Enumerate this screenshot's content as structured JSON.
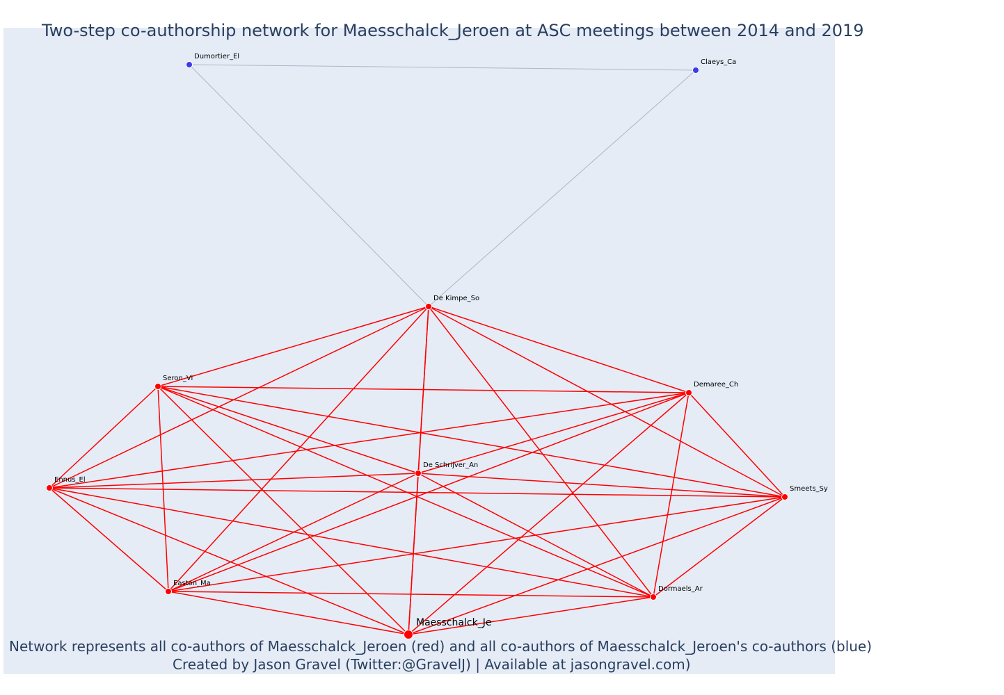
{
  "title": "Two-step co-authorship network for Maesschalck_Jeroen at ASC meetings between 2014 and 2019",
  "caption_line1": "Network represents all co-authors of Maesschalck_Jeroen (red) and all co-authors of Maesschalck_Jeroen's co-authors (blue)",
  "caption_line2": "Created by Jason Gravel (Twitter:@GravelJ) | Available at jasongravel.com)",
  "colors": {
    "first_step": "#ff0000",
    "second_step": "#3b3bea",
    "second_edge": "#b0b4c8",
    "background": "#e5ecf6",
    "title": "#2a3f5f"
  },
  "nodes": [
    {
      "id": "Dumortier_El",
      "label": "Dumortier_El",
      "group": "co-author-of-co-author"
    },
    {
      "id": "Claeys_Ca",
      "label": "Claeys_Ca",
      "group": "co-author-of-co-author"
    },
    {
      "id": "De Kimpe_So",
      "label": "De Kimpe_So",
      "group": "co-author"
    },
    {
      "id": "Seron_Vi",
      "label": "Seron_Vi",
      "group": "co-author"
    },
    {
      "id": "Demaree_Ch",
      "label": "Demaree_Ch",
      "group": "co-author"
    },
    {
      "id": "De Schrijver_An",
      "label": "De Schrijver_An",
      "group": "co-author"
    },
    {
      "id": "Ennus_El",
      "label": "Ennus_El",
      "group": "co-author"
    },
    {
      "id": "Smeets_Sy",
      "label": "Smeets_Sy",
      "group": "co-author"
    },
    {
      "id": "Easton_Ma",
      "label": "Easton_Ma",
      "group": "co-author"
    },
    {
      "id": "Dormaels_Ar",
      "label": "Dormaels_Ar",
      "group": "co-author"
    },
    {
      "id": "Maesschalck_Je",
      "label": "Maesschalck_Je",
      "group": "focal"
    }
  ],
  "edges_second_step": [
    [
      "Dumortier_El",
      "Claeys_Ca"
    ],
    [
      "Dumortier_El",
      "De Kimpe_So"
    ],
    [
      "Claeys_Ca",
      "De Kimpe_So"
    ]
  ],
  "edges_first_step": [
    [
      "De Kimpe_So",
      "Seron_Vi"
    ],
    [
      "De Kimpe_So",
      "Demaree_Ch"
    ],
    [
      "De Kimpe_So",
      "De Schrijver_An"
    ],
    [
      "De Kimpe_So",
      "Ennus_El"
    ],
    [
      "De Kimpe_So",
      "Smeets_Sy"
    ],
    [
      "De Kimpe_So",
      "Easton_Ma"
    ],
    [
      "De Kimpe_So",
      "Dormaels_Ar"
    ],
    [
      "De Kimpe_So",
      "Maesschalck_Je"
    ],
    [
      "Seron_Vi",
      "Demaree_Ch"
    ],
    [
      "Seron_Vi",
      "De Schrijver_An"
    ],
    [
      "Seron_Vi",
      "Ennus_El"
    ],
    [
      "Seron_Vi",
      "Smeets_Sy"
    ],
    [
      "Seron_Vi",
      "Easton_Ma"
    ],
    [
      "Seron_Vi",
      "Dormaels_Ar"
    ],
    [
      "Seron_Vi",
      "Maesschalck_Je"
    ],
    [
      "Demaree_Ch",
      "De Schrijver_An"
    ],
    [
      "Demaree_Ch",
      "Ennus_El"
    ],
    [
      "Demaree_Ch",
      "Smeets_Sy"
    ],
    [
      "Demaree_Ch",
      "Easton_Ma"
    ],
    [
      "Demaree_Ch",
      "Dormaels_Ar"
    ],
    [
      "Demaree_Ch",
      "Maesschalck_Je"
    ],
    [
      "De Schrijver_An",
      "Ennus_El"
    ],
    [
      "De Schrijver_An",
      "Smeets_Sy"
    ],
    [
      "De Schrijver_An",
      "Easton_Ma"
    ],
    [
      "De Schrijver_An",
      "Dormaels_Ar"
    ],
    [
      "De Schrijver_An",
      "Maesschalck_Je"
    ],
    [
      "Ennus_El",
      "Smeets_Sy"
    ],
    [
      "Ennus_El",
      "Easton_Ma"
    ],
    [
      "Ennus_El",
      "Dormaels_Ar"
    ],
    [
      "Ennus_El",
      "Maesschalck_Je"
    ],
    [
      "Smeets_Sy",
      "Easton_Ma"
    ],
    [
      "Smeets_Sy",
      "Dormaels_Ar"
    ],
    [
      "Smeets_Sy",
      "Maesschalck_Je"
    ],
    [
      "Easton_Ma",
      "Dormaels_Ar"
    ],
    [
      "Easton_Ma",
      "Maesschalck_Je"
    ],
    [
      "Dormaels_Ar",
      "Maesschalck_Je"
    ]
  ]
}
